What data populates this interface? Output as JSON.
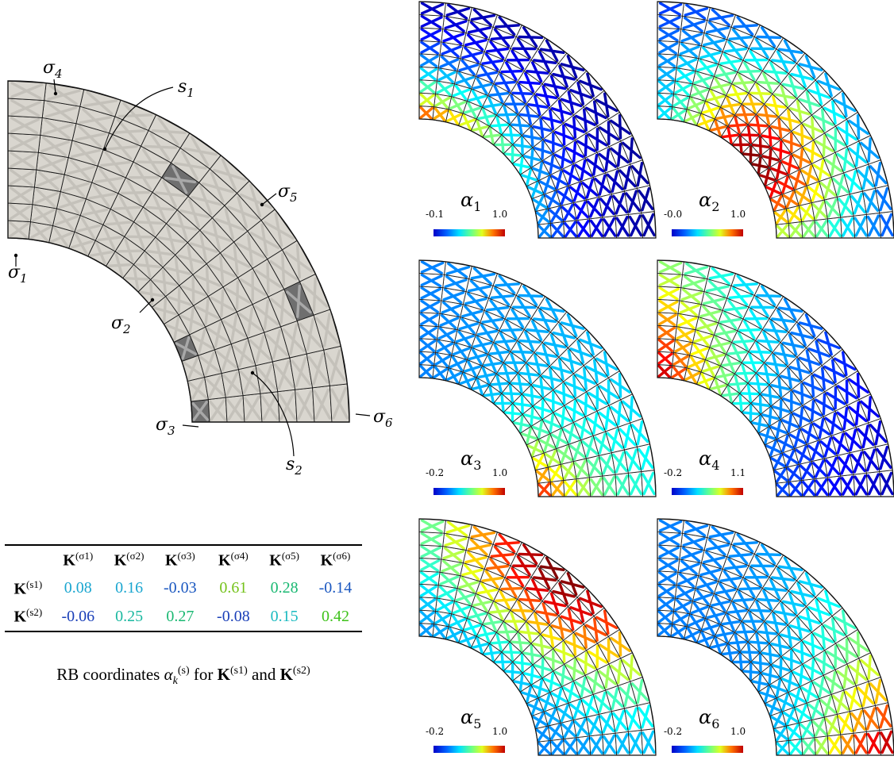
{
  "diagram": {
    "region_labels": [
      {
        "id": "s1",
        "base": "s",
        "sub": "1"
      },
      {
        "id": "s2",
        "base": "s",
        "sub": "2"
      }
    ],
    "sample_labels": [
      {
        "id": "sigma1",
        "base": "σ",
        "sub": "1"
      },
      {
        "id": "sigma2",
        "base": "σ",
        "sub": "2"
      },
      {
        "id": "sigma3",
        "base": "σ",
        "sub": "3"
      },
      {
        "id": "sigma4",
        "base": "σ",
        "sub": "4"
      },
      {
        "id": "sigma5",
        "base": "σ",
        "sub": "5"
      },
      {
        "id": "sigma6",
        "base": "σ",
        "sub": "6"
      }
    ]
  },
  "table": {
    "column_headers": [
      {
        "base": "K",
        "sup": "(σ1)"
      },
      {
        "base": "K",
        "sup": "(σ2)"
      },
      {
        "base": "K",
        "sup": "(σ3)"
      },
      {
        "base": "K",
        "sup": "(σ4)"
      },
      {
        "base": "K",
        "sup": "(σ5)"
      },
      {
        "base": "K",
        "sup": "(σ6)"
      }
    ],
    "rows": [
      {
        "base": "K",
        "sup": "(s1)",
        "values": [
          "0.08",
          "0.16",
          "-0.03",
          "0.61",
          "0.28",
          "-0.14"
        ],
        "colors": [
          "#1aa6d0",
          "#1aa6d0",
          "#1a57c0",
          "#74c21a",
          "#1ab872",
          "#1a57c0"
        ]
      },
      {
        "base": "K",
        "sup": "(s2)",
        "values": [
          "-0.06",
          "0.25",
          "0.27",
          "-0.08",
          "0.15",
          "0.42"
        ],
        "colors": [
          "#1a3fb8",
          "#1ab8a0",
          "#1ab872",
          "#1a3fb8",
          "#1abac0",
          "#3ec21a"
        ]
      }
    ],
    "caption": {
      "pre": "RB coordinates ",
      "alpha": "α",
      "sub": "k",
      "sup": "(s)",
      "mid": " for ",
      "and": " and "
    }
  },
  "panels": [
    {
      "label_base": "α",
      "label_sub": "1",
      "min": "-0.1",
      "max": "1.0"
    },
    {
      "label_base": "α",
      "label_sub": "2",
      "min": "-0.0",
      "max": "1.0"
    },
    {
      "label_base": "α",
      "label_sub": "3",
      "min": "-0.2",
      "max": "1.0"
    },
    {
      "label_base": "α",
      "label_sub": "4",
      "min": "-0.2",
      "max": "1.1"
    },
    {
      "label_base": "α",
      "label_sub": "5",
      "min": "-0.2",
      "max": "1.0"
    },
    {
      "label_base": "α",
      "label_sub": "6",
      "min": "-0.2",
      "max": "1.0"
    }
  ],
  "colors": {
    "mesh_fill": "#d9d6cf",
    "mesh_strut": "#c4c1ba",
    "sample_fill": "#6f6f6f",
    "jet": [
      "#00008f",
      "#0050ff",
      "#00ffff",
      "#80ff80",
      "#ffff00",
      "#ff5000",
      "#8f0000"
    ]
  }
}
